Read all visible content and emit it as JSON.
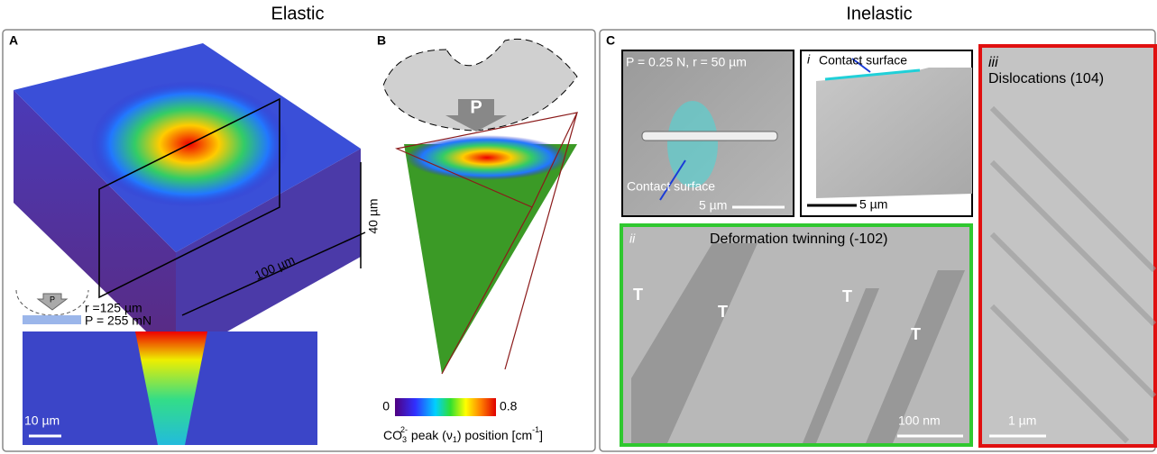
{
  "header": {
    "left_title": "Elastic",
    "right_title": "Inelastic"
  },
  "panel_a": {
    "label": "A",
    "height": "40 µm",
    "width": "100 µm",
    "indenter": "P",
    "radius": "r =125 µm",
    "load": "P = 255 mN",
    "scale": "10 µm"
  },
  "panel_b": {
    "label": "B",
    "indenter": "P",
    "colorbar": {
      "min": 0,
      "max": 0.8,
      "label_parts": [
        "CO",
        "3",
        "2-",
        " peak (ν",
        "1",
        ") position [cm",
        "-1",
        "]"
      ]
    }
  },
  "panel_c": {
    "label": "C",
    "sem": {
      "caption": "P = 0.25 N, r = 50 µm",
      "annotation": "Contact surface",
      "scale": "5 µm"
    },
    "tem_i": {
      "label": "i",
      "annotation": "Contact surface",
      "scale": "5 µm"
    },
    "tem_ii": {
      "label": "ii",
      "title": "Deformation twinning (-102)",
      "markers": [
        "T",
        "T",
        "T",
        "T"
      ],
      "scale": "100 nm"
    },
    "tem_iii": {
      "label": "iii",
      "title": "Dislocations (104)",
      "scale": "1 µm"
    }
  }
}
